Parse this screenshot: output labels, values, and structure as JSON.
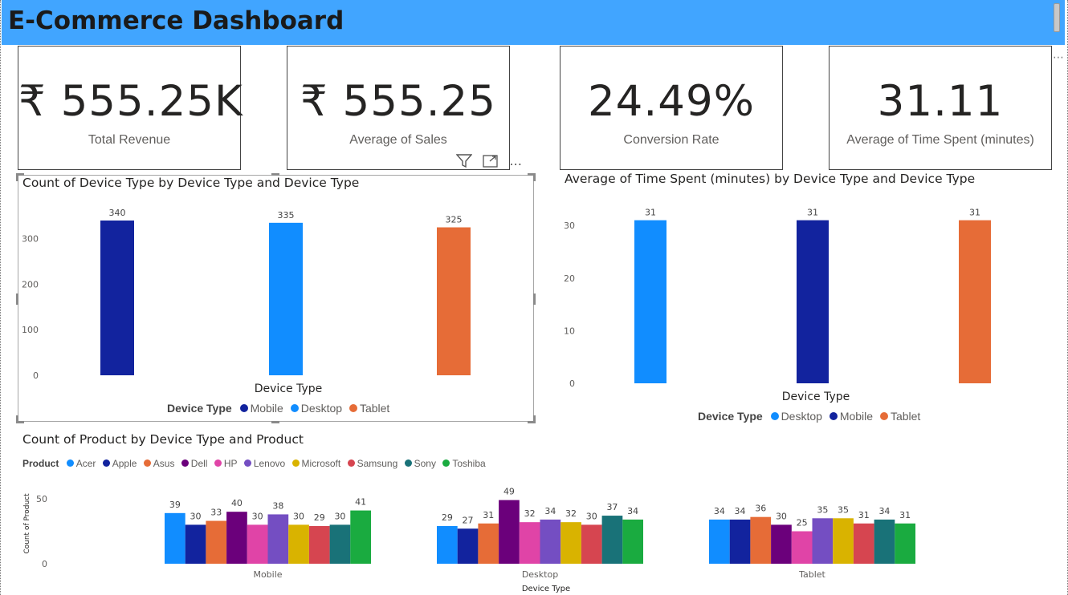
{
  "header": {
    "title": "E-Commerce Dashboard"
  },
  "cards": [
    {
      "value": "₹ 555.25K",
      "label": "Total Revenue"
    },
    {
      "value": "₹ 555.25",
      "label": "Average of Sales"
    },
    {
      "value": "24.49%",
      "label": "Conversion Rate"
    },
    {
      "value": "31.11",
      "label": "Average of Time Spent (minutes)"
    }
  ],
  "visual_icons": {
    "filter": "filter-icon",
    "focus": "focus-mode-icon",
    "more": "more-options-icon"
  },
  "chart_data": [
    {
      "type": "bar",
      "title": "Count of Device Type by Device Type and Device Type",
      "xlabel": "Device Type",
      "ylabel": "",
      "categories": [
        "Mobile",
        "Desktop",
        "Tablet"
      ],
      "values": [
        340,
        335,
        325
      ],
      "colors": [
        "#12239e",
        "#118dff",
        "#e66c37"
      ],
      "ylim": [
        0,
        340
      ],
      "yticks": [
        0,
        100,
        200,
        300
      ],
      "legend": {
        "title": "Device Type",
        "items": [
          "Mobile",
          "Desktop",
          "Tablet"
        ],
        "position": "bottom-center"
      }
    },
    {
      "type": "bar",
      "title": "Average of Time Spent (minutes) by Device Type and Device Type",
      "xlabel": "Device Type",
      "ylabel": "",
      "categories": [
        "Desktop",
        "Mobile",
        "Tablet"
      ],
      "values": [
        31,
        31,
        31
      ],
      "colors": [
        "#118dff",
        "#12239e",
        "#e66c37"
      ],
      "ylim": [
        0,
        31.4
      ],
      "yticks": [
        0,
        10,
        20,
        30
      ],
      "legend": {
        "title": "Device Type",
        "items": [
          "Desktop",
          "Mobile",
          "Tablet"
        ],
        "position": "bottom-center"
      }
    },
    {
      "type": "bar",
      "title": "Count of Product by Device Type and Product",
      "xlabel": "Device Type",
      "ylabel": "Count of Product",
      "categories": [
        "Mobile",
        "Desktop",
        "Tablet"
      ],
      "series": [
        {
          "name": "Acer",
          "color": "#118dff",
          "values": [
            39,
            29,
            34
          ]
        },
        {
          "name": "Apple",
          "color": "#12239e",
          "values": [
            30,
            27,
            34
          ]
        },
        {
          "name": "Asus",
          "color": "#e66c37",
          "values": [
            33,
            31,
            36
          ]
        },
        {
          "name": "Dell",
          "color": "#6b007b",
          "values": [
            40,
            49,
            30
          ]
        },
        {
          "name": "HP",
          "color": "#e044a7",
          "values": [
            30,
            32,
            25
          ]
        },
        {
          "name": "Lenovo",
          "color": "#744ec2",
          "values": [
            38,
            34,
            35
          ]
        },
        {
          "name": "Microsoft",
          "color": "#d9b300",
          "values": [
            30,
            32,
            35
          ]
        },
        {
          "name": "Samsung",
          "color": "#d64550",
          "values": [
            29,
            30,
            31
          ]
        },
        {
          "name": "Sony",
          "color": "#197278",
          "values": [
            30,
            37,
            34
          ]
        },
        {
          "name": "Toshiba",
          "color": "#1aab40",
          "values": [
            41,
            34,
            31
          ]
        }
      ],
      "ylim": [
        0,
        50
      ],
      "yticks": [
        0,
        50
      ],
      "legend": {
        "title": "Product",
        "position": "top-left"
      }
    }
  ]
}
